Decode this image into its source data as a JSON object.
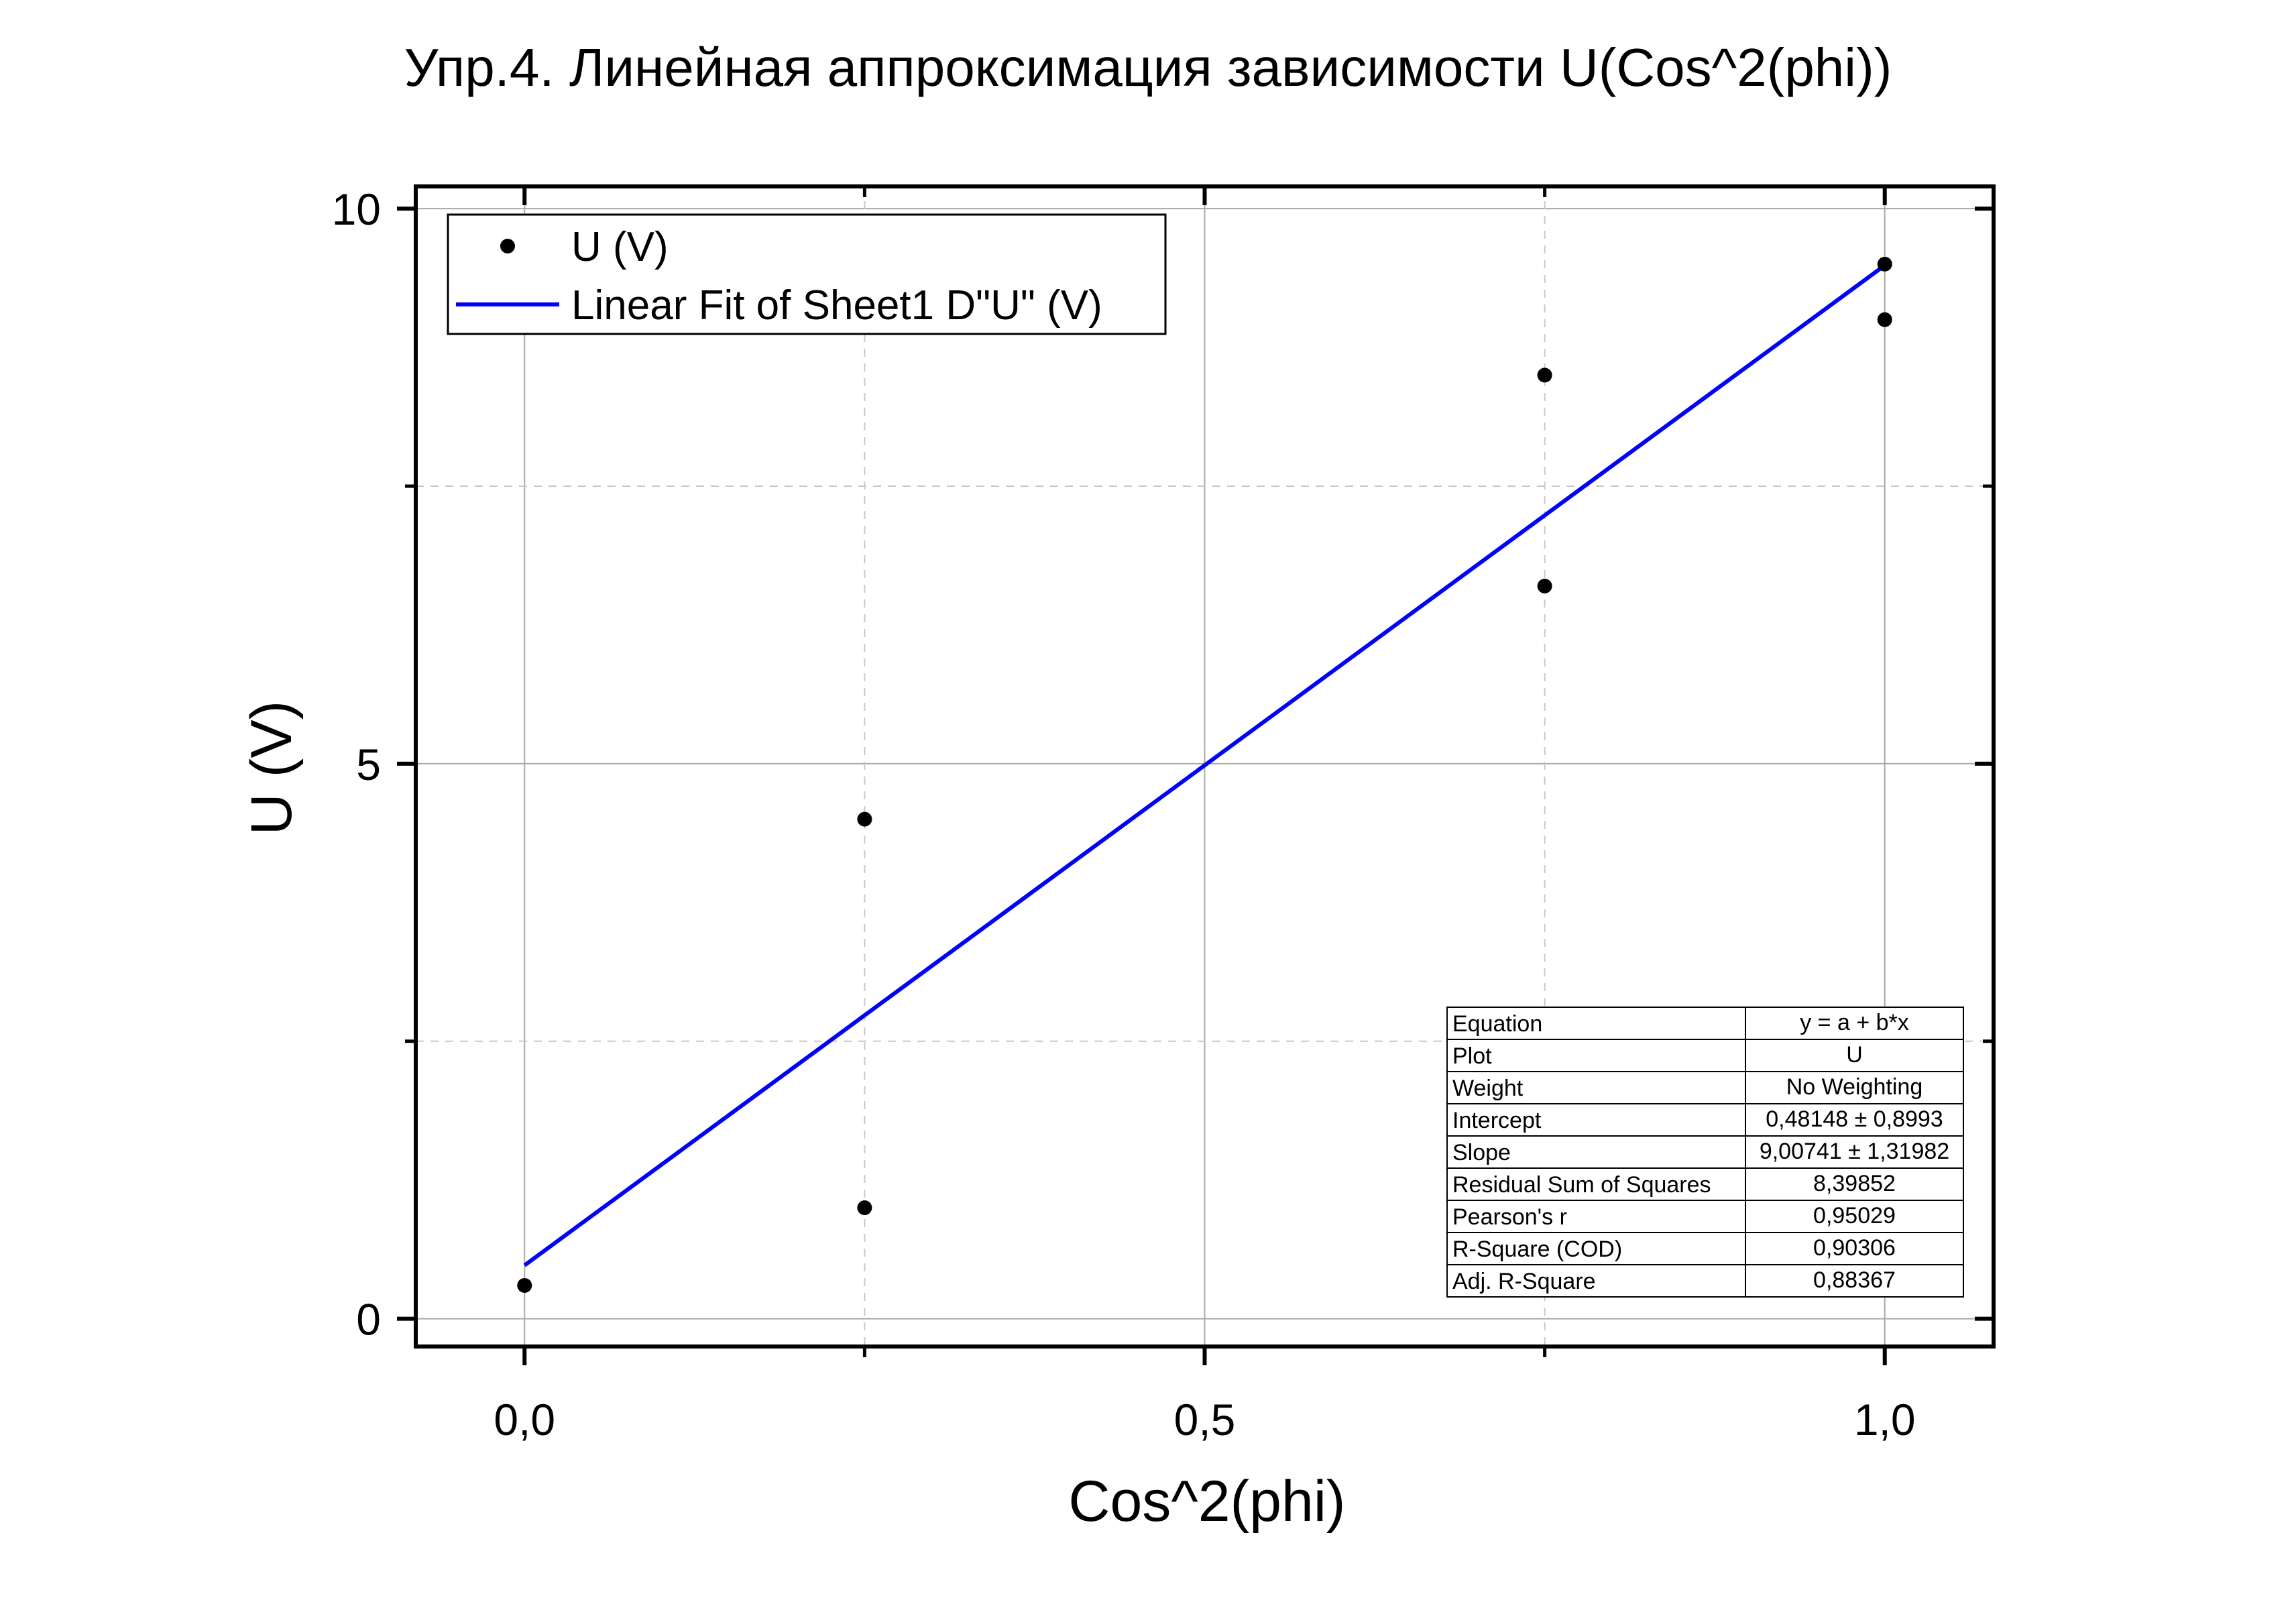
{
  "chart_data": {
    "type": "scatter",
    "title": "Упр.4. Линейная аппроксимация зависимости U(Cos^2(phi))",
    "xlabel": "Cos^2(phi)",
    "ylabel": "U (V)",
    "xlim": [
      -0.08,
      1.08
    ],
    "ylim": [
      -0.25,
      10.2
    ],
    "x_ticks": [
      {
        "value": 0,
        "label": "0,0"
      },
      {
        "value": 0.5,
        "label": "0,5"
      },
      {
        "value": 1.0,
        "label": "1,0"
      }
    ],
    "x_minor_ticks": [
      0.25,
      0.75
    ],
    "y_ticks": [
      {
        "value": 0,
        "label": "0"
      },
      {
        "value": 5,
        "label": "5"
      },
      {
        "value": 10,
        "label": "10"
      }
    ],
    "y_minor_ticks": [
      2.5,
      7.5
    ],
    "grid": true,
    "legend_position": "top-left",
    "series": [
      {
        "name": "U (V)",
        "kind": "scatter",
        "color": "#000000",
        "points": [
          {
            "x": 0.0,
            "y": 0.3
          },
          {
            "x": 0.25,
            "y": 4.5
          },
          {
            "x": 0.25,
            "y": 1.0
          },
          {
            "x": 0.75,
            "y": 8.5
          },
          {
            "x": 0.75,
            "y": 6.6
          },
          {
            "x": 1.0,
            "y": 9.5
          },
          {
            "x": 1.0,
            "y": 9.0
          }
        ]
      },
      {
        "name": "Linear Fit of Sheet1 D\"U\" (V)",
        "kind": "line",
        "color": "#0000ff",
        "intercept": 0.48148,
        "slope": 9.00741,
        "x_range": [
          0.0,
          1.0
        ]
      }
    ],
    "fit_table": [
      {
        "label": "Equation",
        "value": "y = a + b*x"
      },
      {
        "label": "Plot",
        "value": "U"
      },
      {
        "label": "Weight",
        "value": "No Weighting"
      },
      {
        "label": "Intercept",
        "value": "0,48148 ± 0,8993"
      },
      {
        "label": "Slope",
        "value": "9,00741 ± 1,31982"
      },
      {
        "label": "Residual Sum of Squares",
        "value": "8,39852"
      },
      {
        "label": "Pearson's r",
        "value": "0,95029"
      },
      {
        "label": "R-Square (COD)",
        "value": "0,90306"
      },
      {
        "label": "Adj. R-Square",
        "value": "0,88367"
      }
    ]
  }
}
